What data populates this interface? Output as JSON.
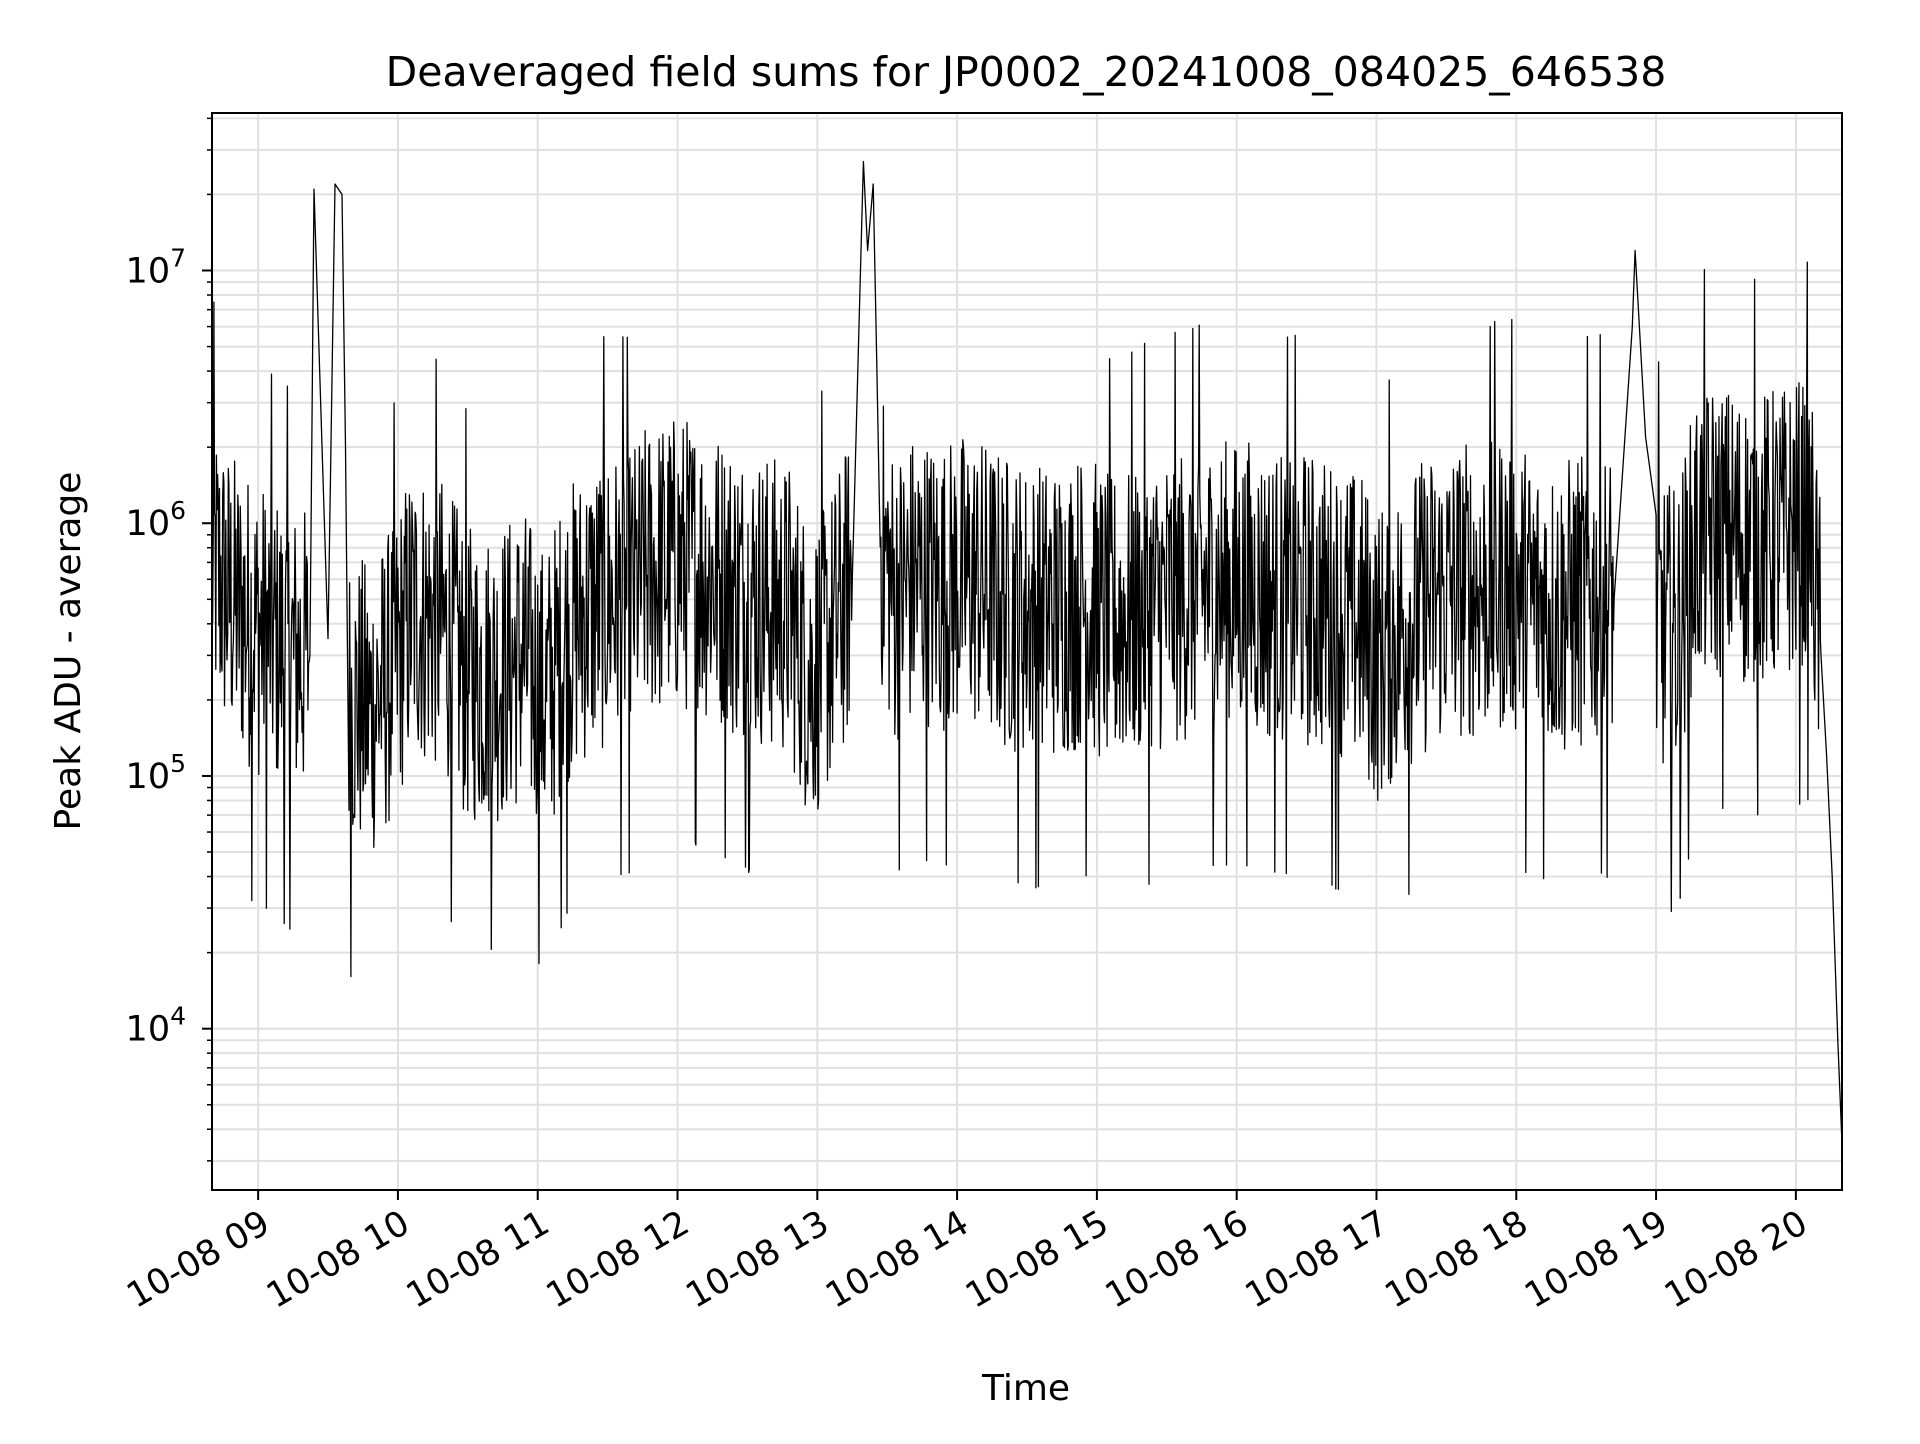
{
  "chart_data": {
    "type": "line",
    "title": "Deaveraged field sums for JP0002_20241008_084025_646538",
    "xlabel": "Time",
    "ylabel": "Peak ADU - average",
    "yscale": "log",
    "xlim_hours": [
      8.67,
      20.33
    ],
    "ylim": [
      2300,
      42000000
    ],
    "grid": true,
    "grid_color": "#e0e0e0",
    "line_color": "#000000",
    "x_ticks": [
      {
        "hour": 9,
        "label": "10-08 09"
      },
      {
        "hour": 10,
        "label": "10-08 10"
      },
      {
        "hour": 11,
        "label": "10-08 11"
      },
      {
        "hour": 12,
        "label": "10-08 12"
      },
      {
        "hour": 13,
        "label": "10-08 13"
      },
      {
        "hour": 14,
        "label": "10-08 14"
      },
      {
        "hour": 15,
        "label": "10-08 15"
      },
      {
        "hour": 16,
        "label": "10-08 16"
      },
      {
        "hour": 17,
        "label": "10-08 17"
      },
      {
        "hour": 18,
        "label": "10-08 18"
      },
      {
        "hour": 19,
        "label": "10-08 19"
      },
      {
        "hour": 20,
        "label": "10-08 20"
      }
    ],
    "y_ticks": [
      {
        "value": 10000,
        "base": "10",
        "exp": "4"
      },
      {
        "value": 100000,
        "base": "10",
        "exp": "5"
      },
      {
        "value": 1000000,
        "base": "10",
        "exp": "6"
      },
      {
        "value": 10000000,
        "base": "10",
        "exp": "7"
      }
    ],
    "series": [
      {
        "values_description_hours_and_ADU": true,
        "x": [
          8.67,
          8.8,
          8.95,
          9.1,
          9.25,
          9.37,
          9.4,
          9.5,
          9.55,
          9.6,
          9.65,
          9.8,
          9.95,
          10.1,
          10.3,
          10.5,
          10.7,
          10.9,
          11.05,
          11.2,
          11.35,
          11.5,
          11.65,
          11.8,
          12.0,
          12.2,
          12.4,
          12.6,
          12.8,
          12.95,
          13.1,
          13.25,
          13.33,
          13.36,
          13.4,
          13.45,
          13.55,
          13.7,
          13.9,
          14.1,
          14.3,
          14.5,
          14.7,
          14.9,
          15.1,
          15.3,
          15.5,
          15.7,
          15.9,
          16.1,
          16.3,
          16.5,
          16.7,
          16.9,
          17.0,
          17.2,
          17.4,
          17.6,
          17.8,
          17.95,
          18.1,
          18.3,
          18.5,
          18.7,
          18.83,
          18.85,
          19.0,
          19.15,
          19.3,
          19.5,
          19.7,
          19.9,
          20.1,
          20.18,
          20.22,
          20.26,
          20.3,
          20.33
        ],
        "y": [
          700000,
          500000,
          400000,
          350000,
          300000,
          300000,
          21000000,
          350000,
          22000000,
          20000000,
          200000,
          180000,
          250000,
          450000,
          400000,
          250000,
          250000,
          300000,
          200000,
          350000,
          450000,
          500000,
          500000,
          650000,
          700000,
          650000,
          550000,
          500000,
          450000,
          250000,
          350000,
          600000,
          27000000,
          12000000,
          22000000,
          900000,
          500000,
          600000,
          550000,
          600000,
          500000,
          450000,
          450000,
          500000,
          400000,
          450000,
          500000,
          550000,
          550000,
          550000,
          500000,
          500000,
          450000,
          400000,
          300000,
          400000,
          500000,
          550000,
          550000,
          600000,
          500000,
          450000,
          500000,
          500000,
          6000000,
          12000000,
          400000,
          350000,
          900000,
          900000,
          850000,
          900000,
          1000000,
          300000,
          120000,
          40000,
          9000,
          3500
        ]
      }
    ]
  }
}
